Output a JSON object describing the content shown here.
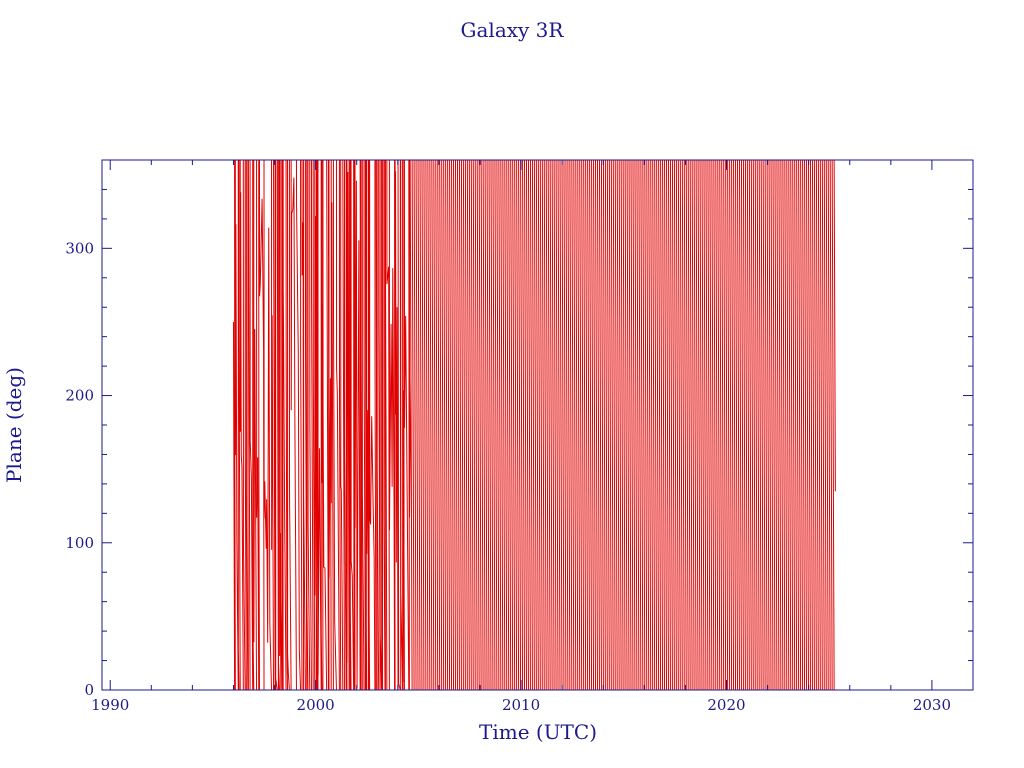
{
  "chart_data": {
    "type": "line",
    "title": "Galaxy 3R",
    "xlabel": "Time (UTC)",
    "ylabel": "Plane (deg)",
    "xlim": [
      1989.6,
      2032.0
    ],
    "ylim": [
      0,
      360
    ],
    "x_ticks": [
      1990,
      2000,
      2010,
      2020,
      2030
    ],
    "x_tick_labels": [
      "1990",
      "2000",
      "2010",
      "2020",
      "2030"
    ],
    "y_ticks": [
      0,
      100,
      200,
      300
    ],
    "y_tick_labels": [
      "0",
      "100",
      "200",
      "300"
    ],
    "grid": false,
    "data_range_x": [
      1996.0,
      2025.3
    ],
    "series": [
      {
        "color": "#e00000",
        "segments": [
          {
            "x_start": 1996.0,
            "x_end": 2004.6,
            "behavior": "rapid irregular sweeps between 0 and 360 deg"
          },
          {
            "x_start": 2004.6,
            "x_end": 2025.3,
            "behavior": "regular wrap-around sweeps between 0 and 360 deg with slowly drifting phase"
          }
        ]
      }
    ]
  },
  "colors": {
    "axis": "#1a1a8c",
    "data": "#e00000",
    "background": "#ffffff"
  }
}
